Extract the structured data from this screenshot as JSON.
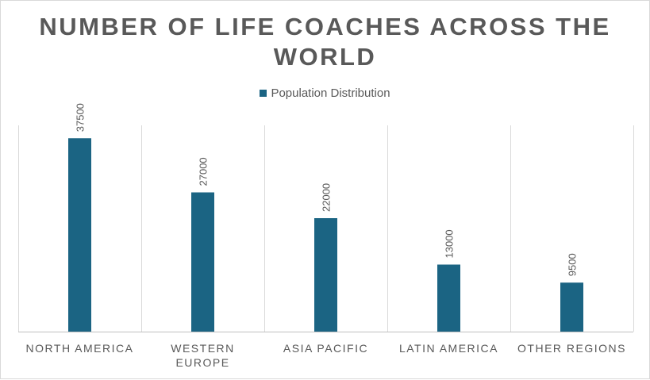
{
  "chart_data": {
    "type": "bar",
    "title": "NUMBER OF LIFE COACHES ACROSS THE WORLD",
    "categories": [
      "NORTH AMERICA",
      "WESTERN EUROPE",
      "ASIA PACIFIC",
      "LATIN AMERICA",
      "OTHER REGIONS"
    ],
    "category_lines": [
      [
        "NORTH AMERICA"
      ],
      [
        "WESTERN",
        "EUROPE"
      ],
      [
        "ASIA PACIFIC"
      ],
      [
        "LATIN AMERICA"
      ],
      [
        "OTHER REGIONS"
      ]
    ],
    "series": [
      {
        "name": "Population Distribution",
        "values": [
          37500,
          27000,
          22000,
          13000,
          9500
        ],
        "color": "#1b6483"
      }
    ],
    "data_labels": [
      "37500",
      "27000",
      "22000",
      "13000",
      "9500"
    ],
    "ylim": [
      0,
      40000
    ],
    "legend_position": "top",
    "gridlines": "vertical category separators",
    "xlabel": "",
    "ylabel": ""
  }
}
